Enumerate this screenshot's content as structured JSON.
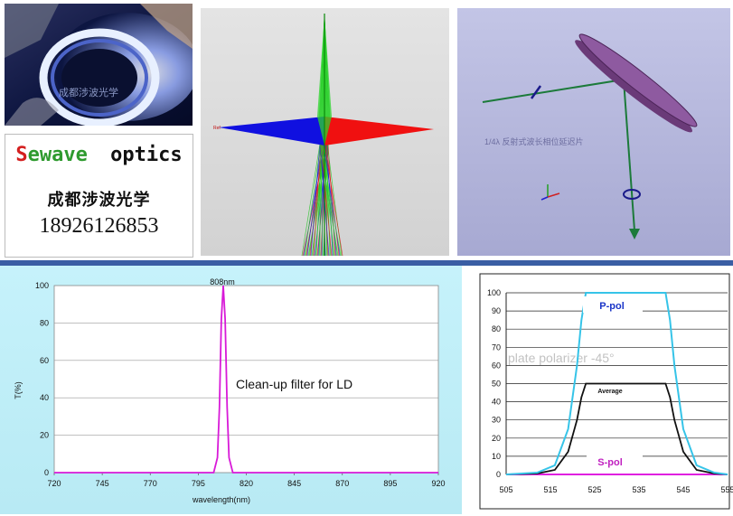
{
  "photo": {
    "watermark": "成都涉波光学"
  },
  "brand": {
    "letters": [
      {
        "ch": "S",
        "color": "#d42020"
      },
      {
        "ch": "e",
        "color": "#2e9a2e"
      },
      {
        "ch": "w",
        "color": "#2e9a2e"
      },
      {
        "ch": "a",
        "color": "#2e9a2e"
      },
      {
        "ch": "v",
        "color": "#2e9a2e"
      },
      {
        "ch": "e",
        "color": "#2e9a2e"
      }
    ],
    "optics": "optics",
    "cn_name": "成都涉波光学",
    "phone": "18926126853"
  },
  "sim2": {
    "caption": "1/4λ 反射式波长相位延迟片"
  },
  "chart1": {
    "peak_label": "808nm",
    "annotation": "Clean-up filter for LD",
    "ylabel": "T(%)",
    "xlabel": "wavelength(nm)",
    "x_ticks": [
      "720",
      "745",
      "770",
      "795",
      "820",
      "845",
      "870",
      "895",
      "920"
    ],
    "y_ticks": [
      "0",
      "20",
      "40",
      "60",
      "80",
      "100"
    ]
  },
  "chart2": {
    "watermark": "plate polarizer -45°",
    "ppol_label": "P-pol",
    "avg_label": "Average",
    "spol_label": "S-pol",
    "x_ticks": [
      "505",
      "515",
      "525",
      "535",
      "545",
      "555"
    ],
    "y_ticks": [
      "0",
      "10",
      "20",
      "30",
      "40",
      "50",
      "60",
      "70",
      "80",
      "90",
      "100"
    ]
  },
  "chart_data": [
    {
      "type": "line",
      "annotation": "Clean-up filter for LD",
      "peak_label": "808nm",
      "xlabel": "wavelength(nm)",
      "ylabel": "T(%)",
      "xlim": [
        720,
        920
      ],
      "ylim": [
        0,
        100
      ],
      "grid": true,
      "series": [
        {
          "color": "#d81ad8",
          "x": [
            720,
            803,
            805,
            806,
            807,
            808,
            809,
            810,
            811,
            813,
            920
          ],
          "y": [
            0,
            0,
            8,
            35,
            82,
            100,
            82,
            35,
            8,
            0,
            0
          ]
        }
      ]
    },
    {
      "type": "line",
      "annotation": "plate polarizer -45°",
      "xlim": [
        505,
        555
      ],
      "ylim": [
        0,
        100
      ],
      "grid": true,
      "series": [
        {
          "name": "P-pol",
          "color": "#36c4e8",
          "x": [
            505,
            512,
            516,
            519,
            521,
            522,
            523,
            541,
            542,
            543,
            545,
            548,
            552,
            555
          ],
          "y": [
            0,
            1,
            5,
            25,
            60,
            85,
            100,
            100,
            85,
            60,
            25,
            5,
            1,
            0
          ]
        },
        {
          "name": "Average",
          "color": "#111111",
          "x": [
            505,
            512,
            516,
            519,
            521,
            522,
            523,
            541,
            542,
            543,
            545,
            548,
            552,
            555
          ],
          "y": [
            0,
            0.5,
            2.5,
            12.5,
            30,
            42.5,
            50,
            50,
            42.5,
            30,
            12.5,
            2.5,
            0.5,
            0
          ]
        },
        {
          "name": "S-pol",
          "color": "#e020e0",
          "x": [
            505,
            555
          ],
          "y": [
            0,
            0
          ]
        }
      ]
    }
  ]
}
